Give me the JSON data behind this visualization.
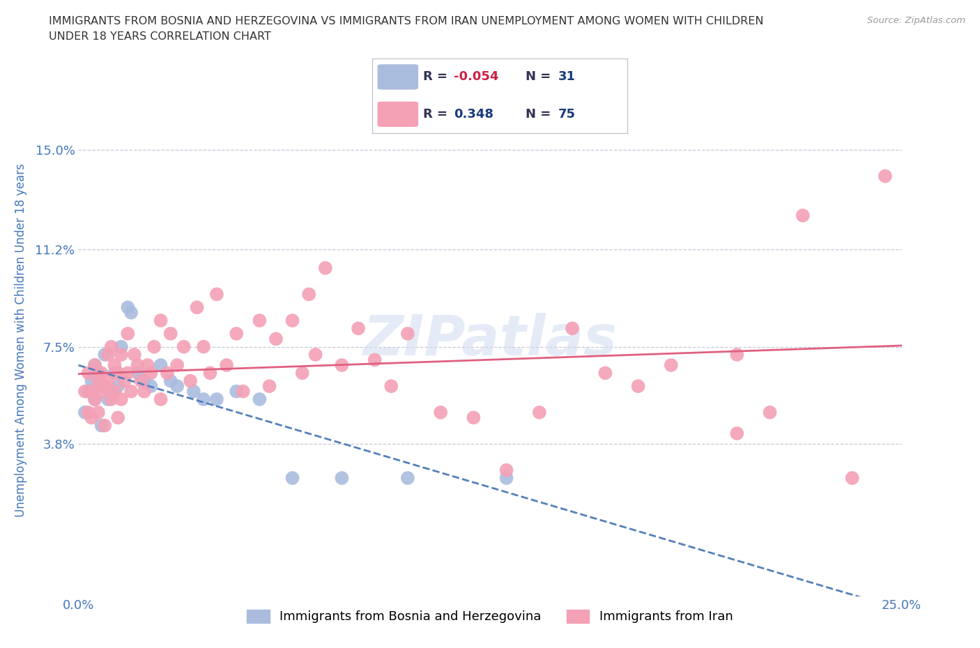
{
  "title": "IMMIGRANTS FROM BOSNIA AND HERZEGOVINA VS IMMIGRANTS FROM IRAN UNEMPLOYMENT AMONG WOMEN WITH CHILDREN\nUNDER 18 YEARS CORRELATION CHART",
  "source": "Source: ZipAtlas.com",
  "ylabel": "Unemployment Among Women with Children Under 18 years",
  "xlim": [
    0.0,
    0.25
  ],
  "ylim": [
    -0.02,
    0.175
  ],
  "yticks": [
    0.038,
    0.075,
    0.112,
    0.15
  ],
  "ytick_labels": [
    "3.8%",
    "7.5%",
    "11.2%",
    "15.0%"
  ],
  "xticks": [
    0.0,
    0.05,
    0.1,
    0.15,
    0.2,
    0.25
  ],
  "xtick_labels": [
    "0.0%",
    "",
    "",
    "",
    "",
    "25.0%"
  ],
  "grid_color": "#c8c8d8",
  "background_color": "#ffffff",
  "series": [
    {
      "name": "Immigrants from Bosnia and Herzegovina",
      "color": "#aabcde",
      "R": -0.054,
      "N": 31,
      "trend_color": "#5580bb",
      "trend_style": "dashed",
      "x": [
        0.002,
        0.003,
        0.004,
        0.005,
        0.005,
        0.006,
        0.007,
        0.007,
        0.008,
        0.009,
        0.01,
        0.011,
        0.012,
        0.013,
        0.015,
        0.016,
        0.018,
        0.02,
        0.022,
        0.025,
        0.028,
        0.03,
        0.035,
        0.038,
        0.042,
        0.048,
        0.055,
        0.065,
        0.08,
        0.1,
        0.13
      ],
      "y": [
        0.05,
        0.058,
        0.062,
        0.055,
        0.068,
        0.065,
        0.045,
        0.06,
        0.072,
        0.055,
        0.058,
        0.065,
        0.06,
        0.075,
        0.09,
        0.088,
        0.065,
        0.062,
        0.06,
        0.068,
        0.062,
        0.06,
        0.058,
        0.055,
        0.055,
        0.058,
        0.055,
        0.025,
        0.025,
        0.025,
        0.025
      ]
    },
    {
      "name": "Immigrants from Iran",
      "color": "#f4a0b5",
      "R": 0.348,
      "N": 75,
      "trend_color": "#e06080",
      "trend_style": "solid",
      "x": [
        0.002,
        0.003,
        0.003,
        0.004,
        0.004,
        0.005,
        0.005,
        0.006,
        0.006,
        0.007,
        0.007,
        0.008,
        0.008,
        0.009,
        0.009,
        0.01,
        0.01,
        0.011,
        0.011,
        0.012,
        0.012,
        0.013,
        0.013,
        0.014,
        0.015,
        0.015,
        0.016,
        0.017,
        0.018,
        0.019,
        0.02,
        0.021,
        0.022,
        0.023,
        0.025,
        0.025,
        0.027,
        0.028,
        0.03,
        0.032,
        0.034,
        0.036,
        0.038,
        0.04,
        0.042,
        0.045,
        0.048,
        0.05,
        0.055,
        0.058,
        0.06,
        0.065,
        0.068,
        0.07,
        0.072,
        0.075,
        0.08,
        0.085,
        0.09,
        0.095,
        0.1,
        0.11,
        0.12,
        0.13,
        0.14,
        0.15,
        0.16,
        0.17,
        0.18,
        0.2,
        0.21,
        0.22,
        0.235,
        0.245,
        0.2
      ],
      "y": [
        0.058,
        0.05,
        0.065,
        0.048,
        0.058,
        0.055,
        0.068,
        0.05,
        0.062,
        0.058,
        0.065,
        0.045,
        0.06,
        0.062,
        0.072,
        0.055,
        0.075,
        0.058,
        0.068,
        0.048,
        0.065,
        0.055,
        0.072,
        0.062,
        0.065,
        0.08,
        0.058,
        0.072,
        0.068,
        0.062,
        0.058,
        0.068,
        0.065,
        0.075,
        0.055,
        0.085,
        0.065,
        0.08,
        0.068,
        0.075,
        0.062,
        0.09,
        0.075,
        0.065,
        0.095,
        0.068,
        0.08,
        0.058,
        0.085,
        0.06,
        0.078,
        0.085,
        0.065,
        0.095,
        0.072,
        0.105,
        0.068,
        0.082,
        0.07,
        0.06,
        0.08,
        0.05,
        0.048,
        0.028,
        0.05,
        0.082,
        0.065,
        0.06,
        0.068,
        0.042,
        0.05,
        0.125,
        0.025,
        0.14,
        0.072
      ]
    }
  ],
  "title_color": "#333333",
  "axis_label_color": "#4477bb",
  "tick_label_color": "#4477bb",
  "legend_R_color": "#cc2244",
  "legend_N_color": "#1a3a7e"
}
